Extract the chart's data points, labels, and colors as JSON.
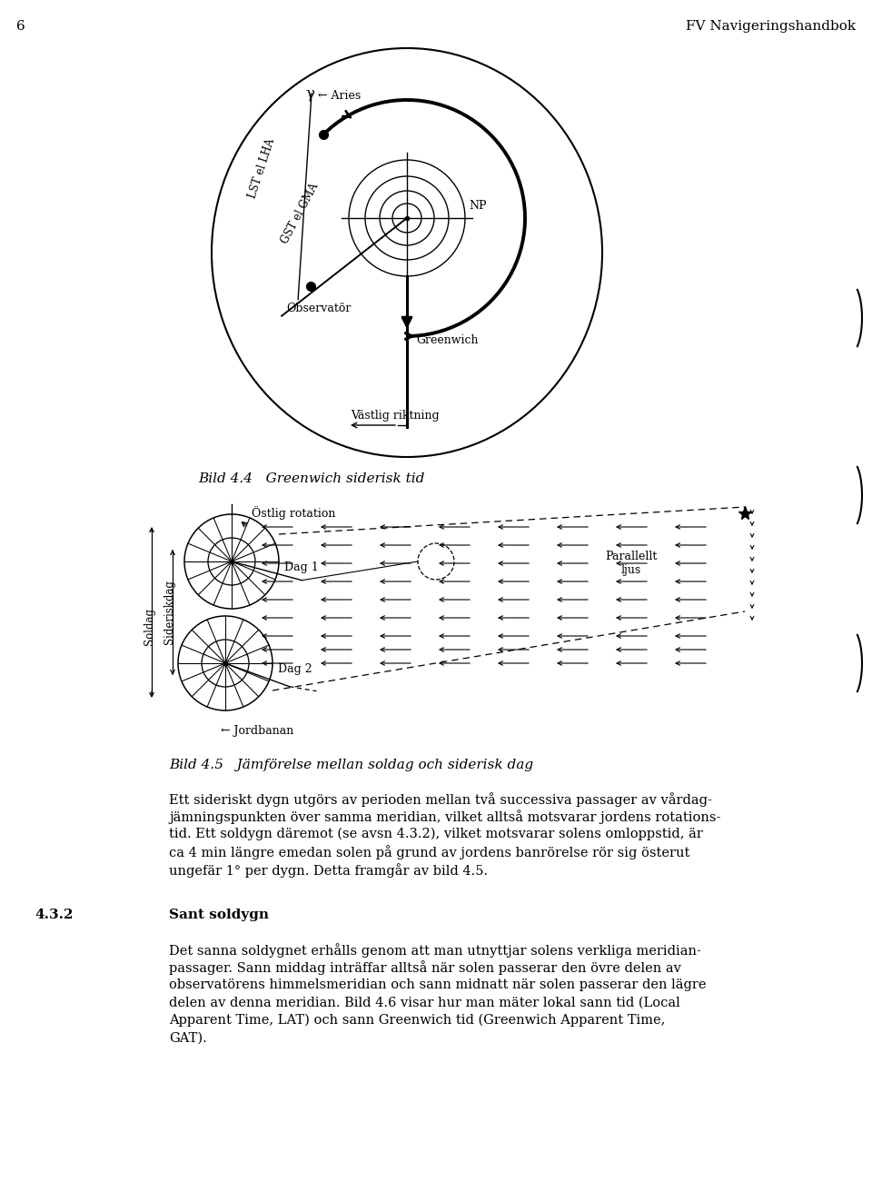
{
  "page_number": "6",
  "header_right": "FV Navigeringshandbok",
  "fig1_caption": "Bild 4.4   Greenwich siderisk tid",
  "fig2_caption": "Bild 4.5   Jämförelse mellan soldag och siderisk dag",
  "section_num": "4.3.2",
  "section_title": "Sant soldygn",
  "para1_lines": [
    "Ett sideriskt dygn utgörs av perioden mellan två successiva passager av vårdag-",
    "jämningspunkten över samma meridian, vilket alltså motsvarar jordens rotations-",
    "tid. Ett soldygn däremot (se avsn 4.3.2), vilket motsvarar solens omloppstid, är",
    "ca 4 min längre emedan solen på grund av jordens banrörelse rör sig österut",
    "ungefär 1° per dygn. Detta framgår av bild 4.5."
  ],
  "para2_lines": [
    "Det sanna soldygnet erhålls genom att man utnyttjar solens verkliga meridian-",
    "passager. Sann middag inträffar alltså när solen passerar den övre delen av",
    "observatörens himmelsmeridian och sann midnatt när solen passerar den lägre",
    "delen av denna meridian. Bild 4.6 visar hur man mäter lokal sann tid (Local",
    "Apparent Time, LAT) och sann Greenwich tid (Greenwich Apparent Time,",
    "GAT)."
  ],
  "bg_color": "#ffffff",
  "text_color": "#000000"
}
